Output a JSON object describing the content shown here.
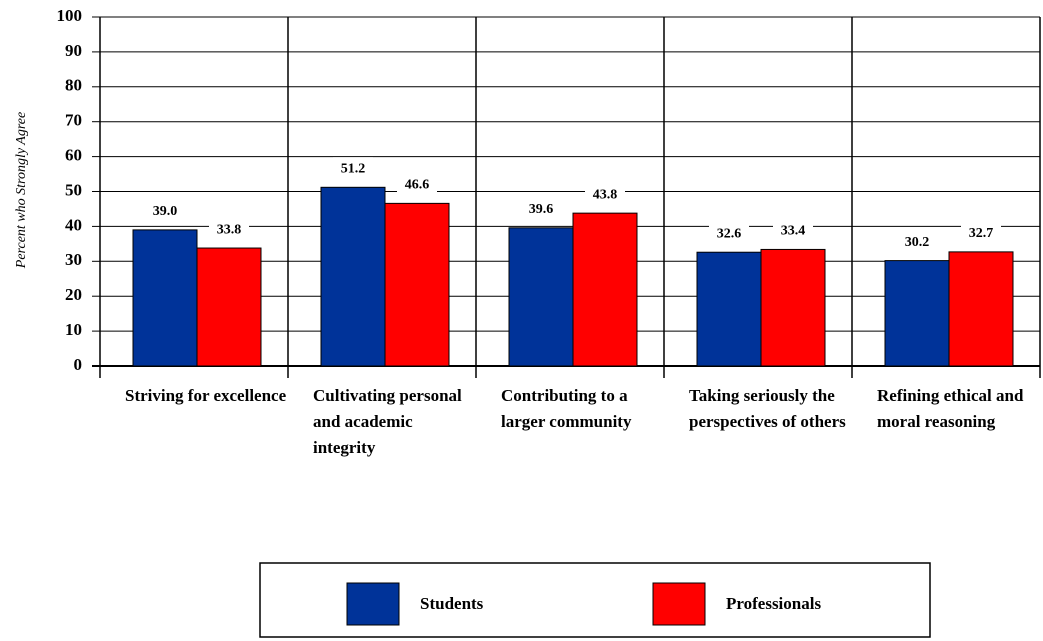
{
  "chart_data": {
    "type": "bar",
    "y_label": "Percent who Strongly Agree",
    "categories": [
      "Striving for excellence",
      "Cultivating personal and academic integrity",
      "Contributing to a larger community",
      "Taking seriously the perspectives of others",
      "Refining ethical and moral reasoning"
    ],
    "series": [
      {
        "name": "Students",
        "color": "#003399",
        "values": [
          39.0,
          51.2,
          39.6,
          32.6,
          30.2
        ],
        "value_labels": [
          "39.0",
          "51.2",
          "39.6",
          "32.6",
          "30.2"
        ]
      },
      {
        "name": "Professionals",
        "color": "#ff0000",
        "values": [
          33.8,
          46.6,
          43.8,
          33.4,
          32.7
        ],
        "value_labels": [
          "33.8",
          "46.6",
          "43.8",
          "33.4",
          "32.7"
        ]
      }
    ],
    "ylim": [
      0,
      100
    ],
    "yticks": [
      0,
      10,
      20,
      30,
      40,
      50,
      60,
      70,
      80,
      90,
      100
    ],
    "grid": true,
    "legend": "bottom"
  }
}
